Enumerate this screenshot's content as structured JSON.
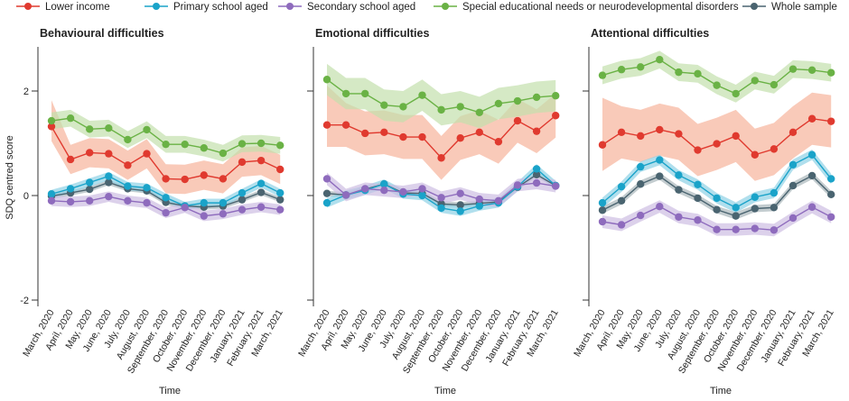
{
  "chart_data": {
    "type": "line",
    "ylabel": "SDQ centred score",
    "xlabel": "Time",
    "ylim": [
      -2,
      2.8
    ],
    "yticks": [
      -2,
      0,
      2
    ],
    "legend_placement": "top",
    "categories": [
      "March, 2020",
      "April, 2020",
      "May, 2020",
      "June, 2020",
      "July, 2020",
      "August, 2020",
      "September, 2020",
      "October, 2020",
      "November, 2020",
      "December, 2020",
      "January, 2021",
      "February, 2021",
      "March, 2021"
    ],
    "series_legend": [
      {
        "name": "Lower income",
        "color": "#e03a2f",
        "band": "#f6b39b"
      },
      {
        "name": "Primary school aged",
        "color": "#1aa3c9",
        "band": "#8fd2e6"
      },
      {
        "name": "Secondary school aged",
        "color": "#8e6bbd",
        "band": "#cdbde3"
      },
      {
        "name": "Special educational needs or neurodevelopmental disorders",
        "color": "#6ab245",
        "band": "#c3e0ad"
      },
      {
        "name": "Whole sample",
        "color": "#4a6470",
        "band": "#a9b6bb"
      }
    ],
    "panels": [
      {
        "title": "Behavioural difficulties",
        "series": [
          {
            "name": "Lower income",
            "values": [
              1.32,
              0.69,
              0.82,
              0.8,
              0.58,
              0.8,
              0.32,
              0.31,
              0.39,
              0.32,
              0.64,
              0.67,
              0.5
            ],
            "ci_halfwidth": 0.28
          },
          {
            "name": "Primary school aged",
            "values": [
              0.03,
              0.13,
              0.25,
              0.37,
              0.18,
              0.15,
              -0.04,
              -0.2,
              -0.14,
              -0.14,
              0.05,
              0.23,
              0.05
            ],
            "ci_halfwidth": 0.08
          },
          {
            "name": "Secondary school aged",
            "values": [
              -0.1,
              -0.12,
              -0.1,
              -0.02,
              -0.1,
              -0.14,
              -0.33,
              -0.23,
              -0.39,
              -0.35,
              -0.27,
              -0.22,
              -0.27
            ],
            "ci_halfwidth": 0.1
          },
          {
            "name": "Special educational needs or neurodevelopmental disorders",
            "values": [
              1.43,
              1.48,
              1.27,
              1.29,
              1.07,
              1.26,
              0.98,
              0.98,
              0.91,
              0.81,
              0.99,
              1.0,
              0.96
            ],
            "ci_halfwidth": 0.16
          },
          {
            "name": "Whole sample",
            "values": [
              -0.01,
              0.05,
              0.12,
              0.25,
              0.13,
              0.09,
              -0.13,
              -0.2,
              -0.22,
              -0.2,
              -0.08,
              0.06,
              -0.08
            ],
            "ci_halfwidth": 0.05
          }
        ]
      },
      {
        "title": "Emotional difficulties",
        "series": [
          {
            "name": "Lower income",
            "values": [
              1.35,
              1.35,
              1.19,
              1.21,
              1.12,
              1.12,
              0.72,
              1.1,
              1.21,
              1.03,
              1.43,
              1.23,
              1.53
            ],
            "ci_halfwidth": 0.42
          },
          {
            "name": "Primary school aged",
            "values": [
              -0.14,
              0.01,
              0.1,
              0.22,
              0.03,
              0.0,
              -0.24,
              -0.3,
              -0.2,
              -0.14,
              0.17,
              0.51,
              0.19
            ],
            "ci_halfwidth": 0.09
          },
          {
            "name": "Secondary school aged",
            "values": [
              0.32,
              0.01,
              0.13,
              0.1,
              0.07,
              0.13,
              -0.04,
              0.04,
              -0.07,
              -0.1,
              0.2,
              0.24,
              0.18
            ],
            "ci_halfwidth": 0.12
          },
          {
            "name": "Special educational needs or neurodevelopmental disorders",
            "values": [
              2.22,
              1.95,
              1.95,
              1.73,
              1.7,
              1.92,
              1.64,
              1.7,
              1.59,
              1.76,
              1.81,
              1.88,
              1.91
            ],
            "ci_halfwidth": 0.3
          },
          {
            "name": "Whole sample",
            "values": [
              0.04,
              0.01,
              0.12,
              0.22,
              0.05,
              0.04,
              -0.16,
              -0.18,
              -0.15,
              -0.12,
              0.16,
              0.4,
              0.19
            ],
            "ci_halfwidth": 0.05
          }
        ]
      },
      {
        "title": "Attentional difficulties",
        "series": [
          {
            "name": "Lower income",
            "values": [
              0.97,
              1.21,
              1.14,
              1.26,
              1.18,
              0.87,
              0.99,
              1.14,
              0.78,
              0.89,
              1.21,
              1.47,
              1.42
            ],
            "ci_halfwidth": 0.5
          },
          {
            "name": "Primary school aged",
            "values": [
              -0.14,
              0.17,
              0.55,
              0.68,
              0.39,
              0.21,
              -0.05,
              -0.23,
              -0.03,
              0.05,
              0.59,
              0.78,
              0.32
            ],
            "ci_halfwidth": 0.1
          },
          {
            "name": "Secondary school aged",
            "values": [
              -0.5,
              -0.56,
              -0.38,
              -0.21,
              -0.41,
              -0.47,
              -0.65,
              -0.65,
              -0.63,
              -0.66,
              -0.43,
              -0.22,
              -0.41
            ],
            "ci_halfwidth": 0.12
          },
          {
            "name": "Special educational needs or neurodevelopmental disorders",
            "values": [
              2.3,
              2.41,
              2.46,
              2.6,
              2.36,
              2.33,
              2.11,
              1.95,
              2.2,
              2.12,
              2.42,
              2.4,
              2.35
            ],
            "ci_halfwidth": 0.17
          },
          {
            "name": "Whole sample",
            "values": [
              -0.28,
              -0.1,
              0.22,
              0.37,
              0.11,
              -0.05,
              -0.27,
              -0.39,
              -0.25,
              -0.23,
              0.19,
              0.38,
              0.02
            ],
            "ci_halfwidth": 0.07
          }
        ]
      }
    ]
  }
}
